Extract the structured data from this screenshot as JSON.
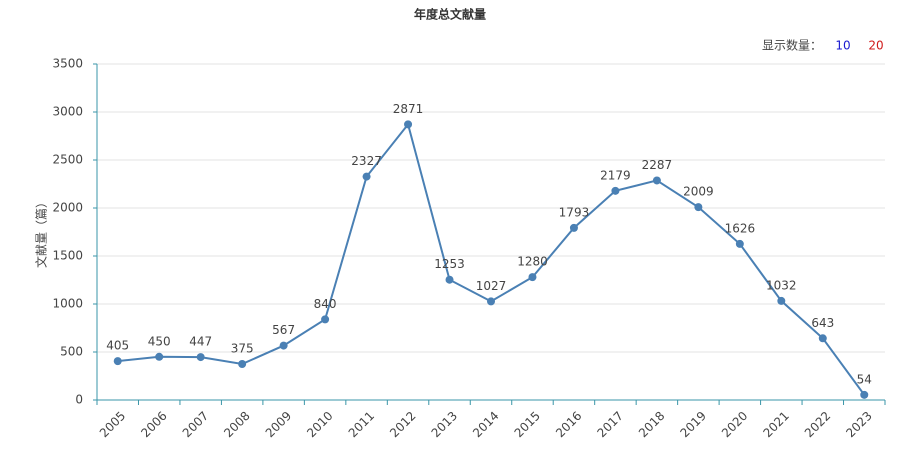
{
  "chart_data": {
    "type": "line",
    "title": "年度总文献量",
    "y_label": "文献量（篇）",
    "categories": [
      "2005",
      "2006",
      "2007",
      "2008",
      "2009",
      "2010",
      "2011",
      "2012",
      "2013",
      "2014",
      "2015",
      "2016",
      "2017",
      "2018",
      "2019",
      "2020",
      "2021",
      "2022",
      "2023"
    ],
    "values": [
      405,
      450,
      447,
      375,
      567,
      840,
      2327,
      2871,
      1253,
      1027,
      1280,
      1793,
      2179,
      2287,
      2009,
      1626,
      1032,
      643,
      54
    ],
    "color": "#4a80b4",
    "ylim": [
      0,
      3500
    ],
    "yticks": [
      0,
      500,
      1000,
      1500,
      2000,
      2500,
      3000,
      3500
    ],
    "grid": true
  },
  "display_count": {
    "label": "显示数量：",
    "options": [
      "10",
      "20"
    ]
  }
}
